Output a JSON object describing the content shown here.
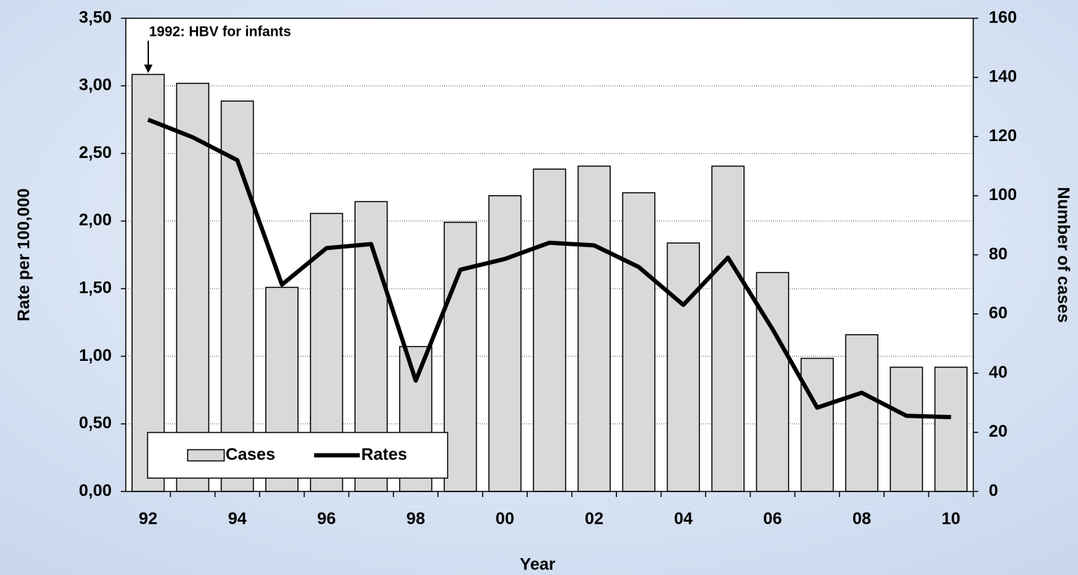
{
  "chart_data": {
    "type": "combo",
    "x_label": "Year",
    "y_label": "Rate per 100,000",
    "y2_label": "Number of cases",
    "annotation": "1992: HBV for infants",
    "categories": [
      "92",
      null,
      "94",
      null,
      "96",
      null,
      "98",
      null,
      "00",
      null,
      "02",
      null,
      "04",
      null,
      "06",
      null,
      "08",
      null,
      "10"
    ],
    "series": [
      {
        "name": "Cases",
        "type": "bar",
        "axis": "y2",
        "color": "#d9d9d9",
        "values": [
          141,
          138,
          132,
          69,
          94,
          98,
          49,
          91,
          100,
          109,
          110,
          101,
          84,
          110,
          74,
          45,
          53,
          42,
          42
        ]
      },
      {
        "name": "Rates",
        "type": "line",
        "axis": "y",
        "color": "#000000",
        "values": [
          2.75,
          2.62,
          2.45,
          1.53,
          1.8,
          1.83,
          0.82,
          1.64,
          1.72,
          1.84,
          1.82,
          1.66,
          1.38,
          1.73,
          1.2,
          0.62,
          0.73,
          0.56,
          0.55
        ]
      }
    ],
    "ylim": [
      0,
      3.5
    ],
    "yticks": [
      {
        "value": 0,
        "label": "0,00"
      },
      {
        "value": 0.5,
        "label": "0,50"
      },
      {
        "value": 1,
        "label": "1,00"
      },
      {
        "value": 1.5,
        "label": "1,50"
      },
      {
        "value": 2,
        "label": "2,00"
      },
      {
        "value": 2.5,
        "label": "2,50"
      },
      {
        "value": 3,
        "label": "3,00"
      },
      {
        "value": 3.5,
        "label": "3,50"
      }
    ],
    "y2lim": [
      0,
      160
    ],
    "y2ticks": [
      0,
      20,
      40,
      60,
      80,
      100,
      120,
      140,
      160
    ],
    "grid": true,
    "legend": "lower left"
  }
}
